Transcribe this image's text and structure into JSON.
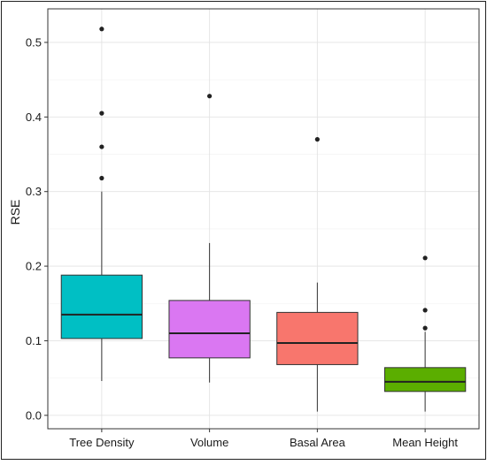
{
  "chart_data": {
    "type": "boxplot",
    "title": "",
    "xlabel": "",
    "ylabel": "RSE",
    "ylim": [
      -0.018,
      0.545
    ],
    "y_ticks": [
      "0.0",
      "0.1",
      "0.2",
      "0.3",
      "0.4",
      "0.5"
    ],
    "y_tick_values": [
      0.0,
      0.1,
      0.2,
      0.3,
      0.4,
      0.5
    ],
    "grid": true,
    "legend": "none",
    "categories": [
      "Tree Density",
      "Volume",
      "Basal Area",
      "Mean Height"
    ],
    "boxes": [
      {
        "category": "Tree Density",
        "whisker_low": 0.046,
        "q1": 0.103,
        "median": 0.135,
        "q3": 0.188,
        "whisker_high": 0.3,
        "outliers": [
          0.318,
          0.36,
          0.405,
          0.518
        ],
        "color": "#00BFC4"
      },
      {
        "category": "Volume",
        "whisker_low": 0.044,
        "q1": 0.077,
        "median": 0.11,
        "q3": 0.154,
        "whisker_high": 0.231,
        "outliers": [
          0.428
        ],
        "color": "#DA77F2"
      },
      {
        "category": "Basal Area",
        "whisker_low": 0.005,
        "q1": 0.068,
        "median": 0.097,
        "q3": 0.138,
        "whisker_high": 0.178,
        "outliers": [
          0.37
        ],
        "color": "#F8766D"
      },
      {
        "category": "Mean Height",
        "whisker_low": 0.005,
        "q1": 0.032,
        "median": 0.045,
        "q3": 0.064,
        "whisker_high": 0.112,
        "outliers": [
          0.117,
          0.141,
          0.211
        ],
        "color": "#5BAE00"
      }
    ]
  }
}
